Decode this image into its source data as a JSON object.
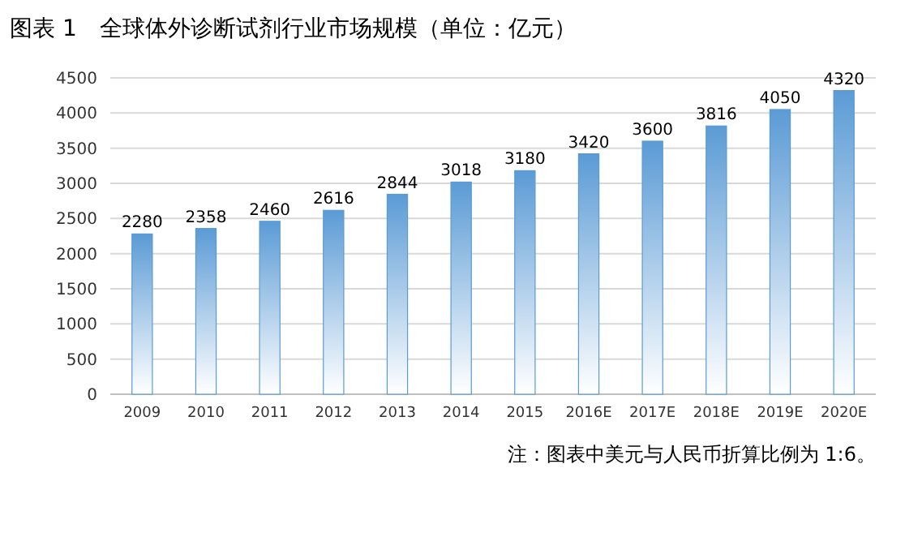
{
  "chart_data": {
    "type": "bar",
    "title": "图表 1　全球体外诊断试剂行业市场规模（单位：亿元）",
    "categories": [
      "2009",
      "2010",
      "2011",
      "2012",
      "2013",
      "2014",
      "2015",
      "2016E",
      "2017E",
      "2018E",
      "2019E",
      "2020E"
    ],
    "values": [
      2280,
      2358,
      2460,
      2616,
      2844,
      3018,
      3180,
      3420,
      3600,
      3816,
      4050,
      4320
    ],
    "color": "#5b9bd5",
    "ylim": [
      0,
      4500
    ],
    "yticks": [
      0,
      500,
      1000,
      1500,
      2000,
      2500,
      3000,
      3500,
      4000,
      4500
    ],
    "grid": "y",
    "data_labels": true,
    "annotations": [
      "注：图表中美元与人民币折算比例为 1:6。"
    ]
  }
}
